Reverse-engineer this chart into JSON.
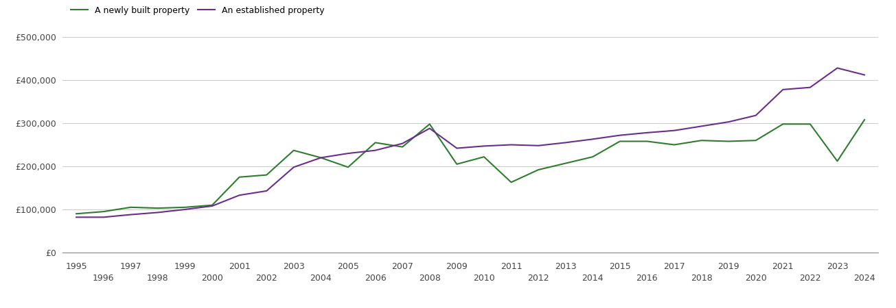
{
  "newly_built": {
    "years": [
      1995,
      1996,
      1997,
      1998,
      1999,
      2000,
      2001,
      2002,
      2003,
      2004,
      2005,
      2006,
      2007,
      2008,
      2009,
      2010,
      2011,
      2012,
      2013,
      2014,
      2015,
      2016,
      2017,
      2018,
      2019,
      2020,
      2021,
      2022,
      2023,
      2024
    ],
    "values": [
      90000,
      95000,
      105000,
      103000,
      105000,
      110000,
      175000,
      180000,
      237000,
      220000,
      198000,
      255000,
      245000,
      298000,
      205000,
      222000,
      163000,
      192000,
      207000,
      222000,
      258000,
      258000,
      250000,
      260000,
      258000,
      260000,
      298000,
      298000,
      212000,
      308000
    ]
  },
  "established": {
    "years": [
      1995,
      1996,
      1997,
      1998,
      1999,
      2000,
      2001,
      2002,
      2003,
      2004,
      2005,
      2006,
      2007,
      2008,
      2009,
      2010,
      2011,
      2012,
      2013,
      2014,
      2015,
      2016,
      2017,
      2018,
      2019,
      2020,
      2021,
      2022,
      2023,
      2024
    ],
    "values": [
      82000,
      82000,
      88000,
      93000,
      100000,
      108000,
      133000,
      143000,
      198000,
      220000,
      230000,
      237000,
      253000,
      288000,
      242000,
      247000,
      250000,
      248000,
      255000,
      263000,
      272000,
      278000,
      283000,
      293000,
      303000,
      318000,
      378000,
      383000,
      428000,
      412000
    ]
  },
  "newly_color": "#2d7d2d",
  "established_color": "#6b2d8b",
  "legend_label_new": "A newly built property",
  "legend_label_est": "An established property",
  "ylim": [
    0,
    500000
  ],
  "yticks": [
    0,
    100000,
    200000,
    300000,
    400000,
    500000
  ],
  "ytick_labels": [
    "£0",
    "£100,000",
    "£200,000",
    "£300,000",
    "£400,000",
    "£500,000"
  ],
  "background_color": "#ffffff",
  "line_width": 1.5,
  "grid_color": "#cccccc"
}
